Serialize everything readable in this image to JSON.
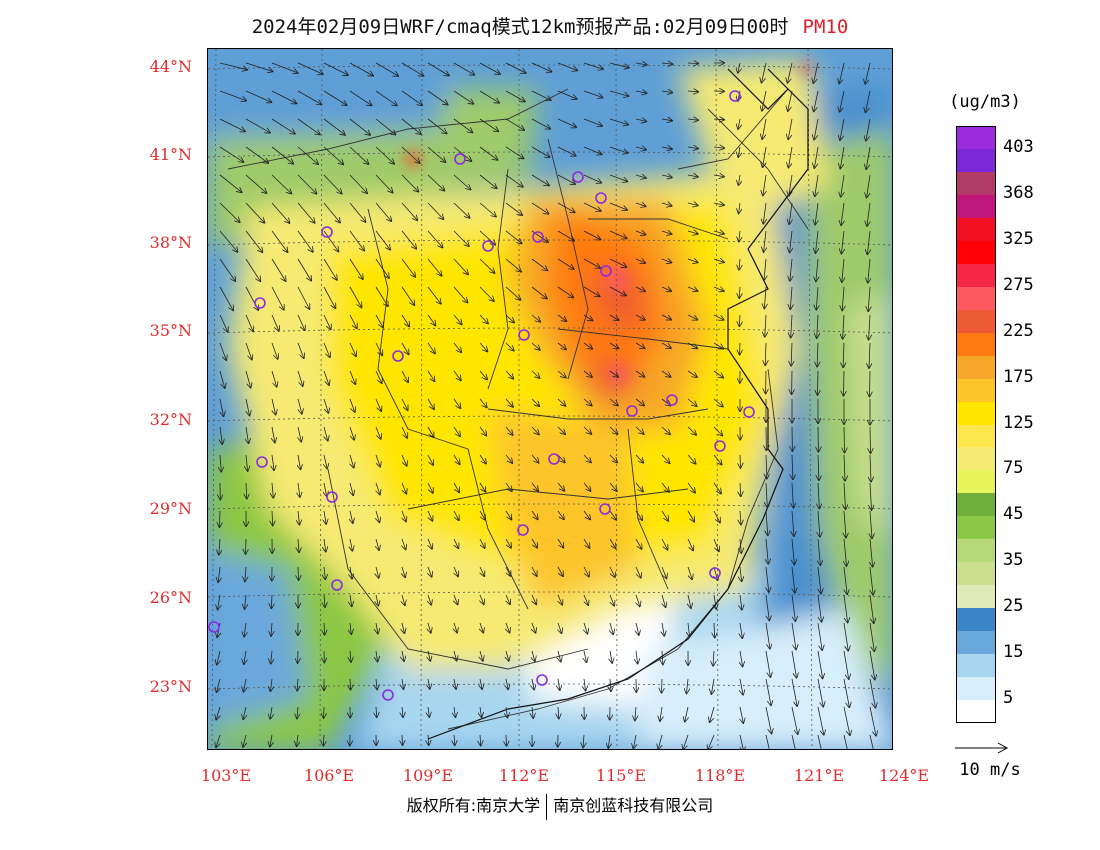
{
  "title": {
    "main": "2024年02月09日WRF/cmaq模式12km预报产品:02月09日00时",
    "variable": "PM10"
  },
  "axes": {
    "lat_labels": [
      "44°N",
      "41°N",
      "38°N",
      "35°N",
      "32°N",
      "29°N",
      "26°N",
      "23°N"
    ],
    "lon_labels": [
      "103°E",
      "106°E",
      "109°E",
      "112°E",
      "115°E",
      "118°E",
      "121°E",
      "124°E"
    ]
  },
  "legend": {
    "unit": "(ug/m3)",
    "levels": [
      {
        "label": "403",
        "color": "#9b2bdc"
      },
      {
        "label": "",
        "color": "#7b29d6"
      },
      {
        "label": "368",
        "color": "#b23a66"
      },
      {
        "label": "",
        "color": "#c0157a"
      },
      {
        "label": "325",
        "color": "#ee1020"
      },
      {
        "label": "",
        "color": "#ff0004"
      },
      {
        "label": "275",
        "color": "#f52747"
      },
      {
        "label": "",
        "color": "#fb5a5f"
      },
      {
        "label": "225",
        "color": "#ee5a33"
      },
      {
        "label": "",
        "color": "#ff7a10"
      },
      {
        "label": "175",
        "color": "#f7a727"
      },
      {
        "label": "",
        "color": "#fdc52a"
      },
      {
        "label": "125",
        "color": "#ffe600"
      },
      {
        "label": "",
        "color": "#fbe64e"
      },
      {
        "label": "75",
        "color": "#f6ea73"
      },
      {
        "label": "",
        "color": "#e8f45c"
      },
      {
        "label": "45",
        "color": "#6fae3a"
      },
      {
        "label": "",
        "color": "#8cc745"
      },
      {
        "label": "35",
        "color": "#b6d877"
      },
      {
        "label": "",
        "color": "#c9df8e"
      },
      {
        "label": "25",
        "color": "#dfeab8"
      },
      {
        "label": "",
        "color": "#3b86c6"
      },
      {
        "label": "15",
        "color": "#6aa8db"
      },
      {
        "label": "",
        "color": "#a8d6f0"
      },
      {
        "label": "5",
        "color": "#d7eefb"
      },
      {
        "label": "",
        "color": "#ffffff"
      }
    ]
  },
  "wind_reference": {
    "label": "10 m/s"
  },
  "footer": {
    "left": "版权所有:南京大学",
    "right": "南京创蓝科技有限公司"
  },
  "colors": {
    "axis_label": "#e22c2c",
    "station_marker": "#8a2be2"
  }
}
